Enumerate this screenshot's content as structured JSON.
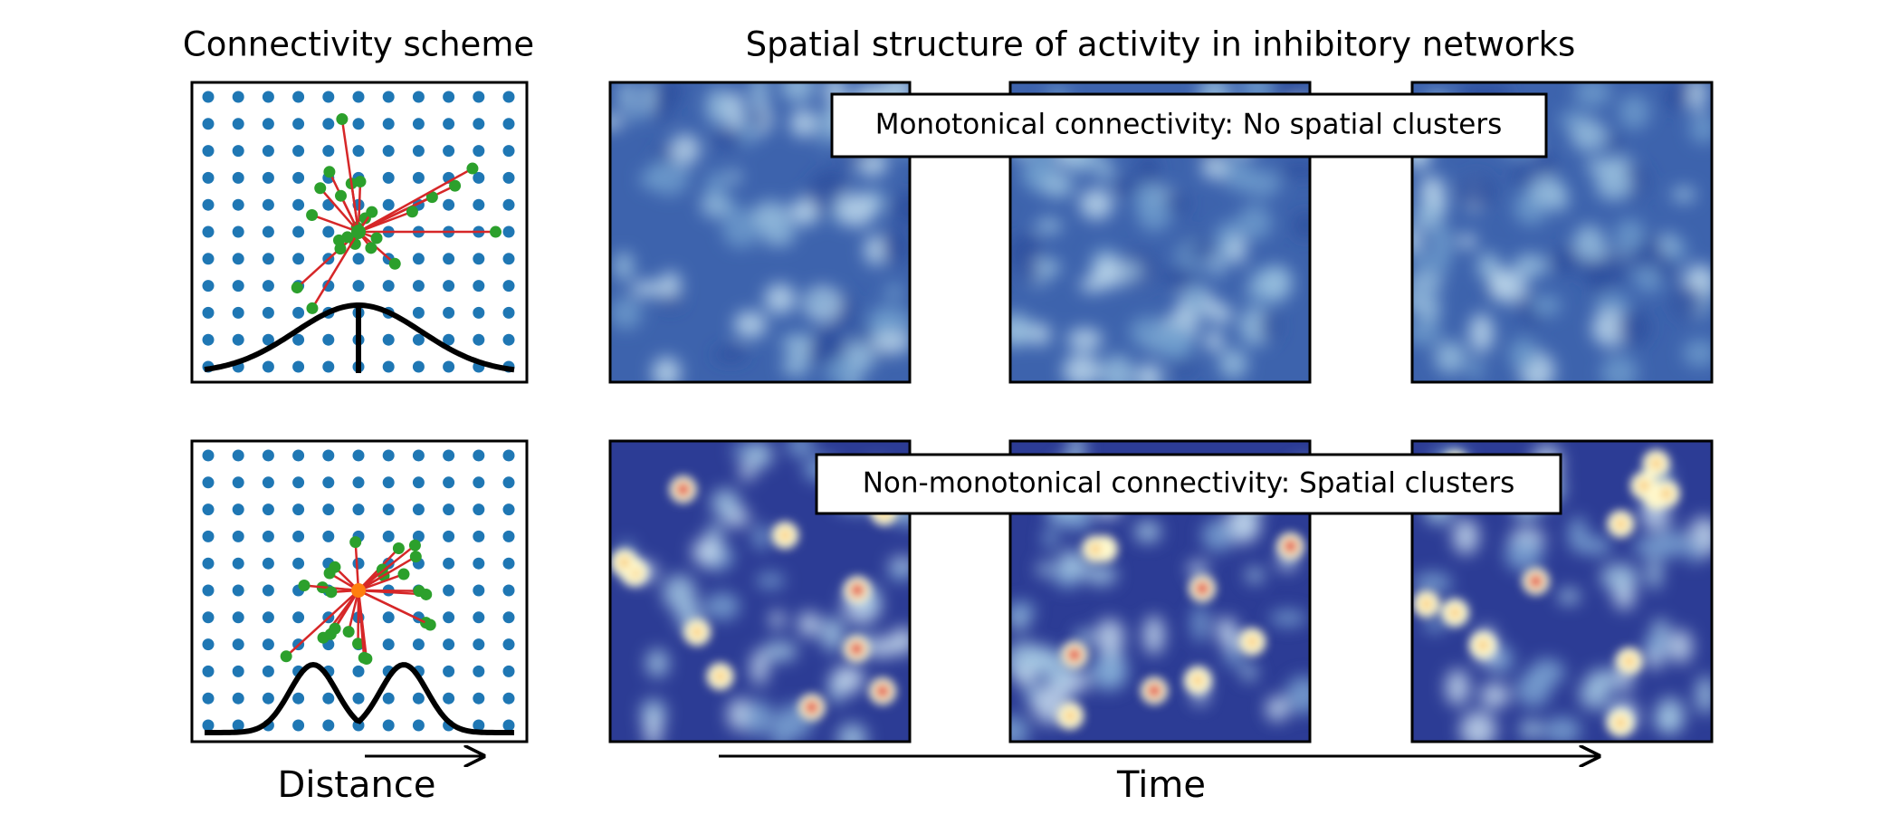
{
  "left_title": "Connectivity scheme",
  "right_title": "Spatial structure of activity in inhibitory networks",
  "rows": [
    {
      "label": "Monotonical connectivity: No spatial clusters"
    },
    {
      "label": "Non-monotonical connectivity: Spatial clusters"
    }
  ],
  "x_labels": {
    "distance": "Distance",
    "time": "Time"
  }
}
